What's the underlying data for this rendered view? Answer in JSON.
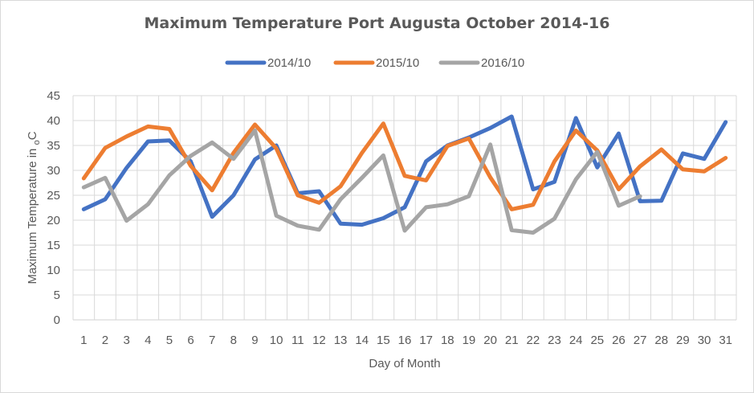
{
  "chart_data": {
    "type": "line",
    "title": "Maximum Temperature Port Augusta October 2014-16",
    "xlabel": "Day of Month",
    "ylabel_main": "Maximum Temperature in ",
    "ylabel_sub": "o",
    "ylabel_end": "C",
    "ylim": [
      0,
      45
    ],
    "yticks": [
      0,
      5,
      10,
      15,
      20,
      25,
      30,
      35,
      40,
      45
    ],
    "grid": true,
    "legend_position": "top",
    "categories": [
      1,
      2,
      3,
      4,
      5,
      6,
      7,
      8,
      9,
      10,
      11,
      12,
      13,
      14,
      15,
      16,
      17,
      18,
      19,
      20,
      21,
      22,
      23,
      24,
      25,
      26,
      27,
      28,
      29,
      30,
      31
    ],
    "series": [
      {
        "name": "2014/10",
        "color": "#4472c4",
        "values": [
          22.2,
          24.2,
          30.5,
          35.8,
          36.0,
          31.8,
          20.7,
          25.0,
          32.2,
          35.0,
          25.4,
          25.8,
          19.3,
          19.1,
          20.4,
          22.6,
          31.8,
          35.0,
          36.6,
          38.5,
          40.8,
          26.2,
          27.7,
          40.5,
          30.6,
          37.4,
          23.8,
          23.9,
          33.4,
          32.3,
          39.7
        ]
      },
      {
        "name": "2015/10",
        "color": "#ed7d31",
        "values": [
          28.4,
          34.5,
          36.8,
          38.8,
          38.3,
          30.9,
          26.0,
          33.5,
          39.2,
          34.4,
          25.0,
          23.5,
          26.8,
          33.5,
          39.4,
          28.9,
          28.0,
          34.9,
          36.4,
          28.6,
          22.2,
          23.1,
          31.8,
          38.0,
          34.0,
          26.2,
          30.8,
          34.2,
          30.2,
          29.8,
          32.5
        ]
      },
      {
        "name": "2016/10",
        "color": "#a5a5a5",
        "values": [
          26.6,
          28.5,
          19.9,
          23.2,
          29.0,
          32.9,
          35.6,
          32.3,
          38.0,
          20.9,
          18.9,
          18.1,
          24.2,
          28.5,
          33.0,
          17.9,
          22.6,
          23.2,
          24.8,
          35.2,
          18.0,
          17.5,
          20.3,
          28.2,
          33.7,
          22.9,
          24.8,
          null,
          null,
          null,
          null
        ]
      }
    ]
  }
}
